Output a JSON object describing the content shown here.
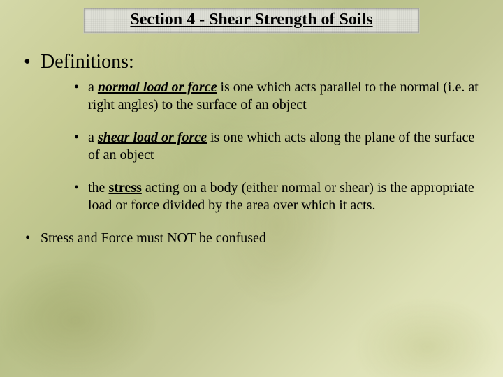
{
  "title": "Section 4 - Shear Strength of Soils",
  "heading": "Definitions:",
  "bullets": {
    "normal": {
      "pre": "a ",
      "term": "normal load or force",
      "post": "  is one which acts parallel to the normal (i.e. at right angles) to the surface of an object"
    },
    "shear": {
      "pre": "a ",
      "term": "shear load or force",
      "post": "  is one which acts along the plane of the surface of an object"
    },
    "stress": {
      "pre": "the ",
      "term": "stress",
      "post": " acting on a body (either normal or shear) is the appropriate load or force divided by the area over which it acts."
    }
  },
  "footer": "Stress and Force must NOT be confused",
  "styling": {
    "title_fontsize": 24,
    "level1_fontsize": 28,
    "level2_fontsize": 20,
    "text_color": "#000000",
    "title_box_bg": "#dedfd6",
    "bg_gradient_colors": [
      "#d4d8a8",
      "#c8cc95",
      "#b8c088",
      "#c5c998",
      "#dde0b5",
      "#e8eac5"
    ],
    "font_family": "Times New Roman"
  }
}
